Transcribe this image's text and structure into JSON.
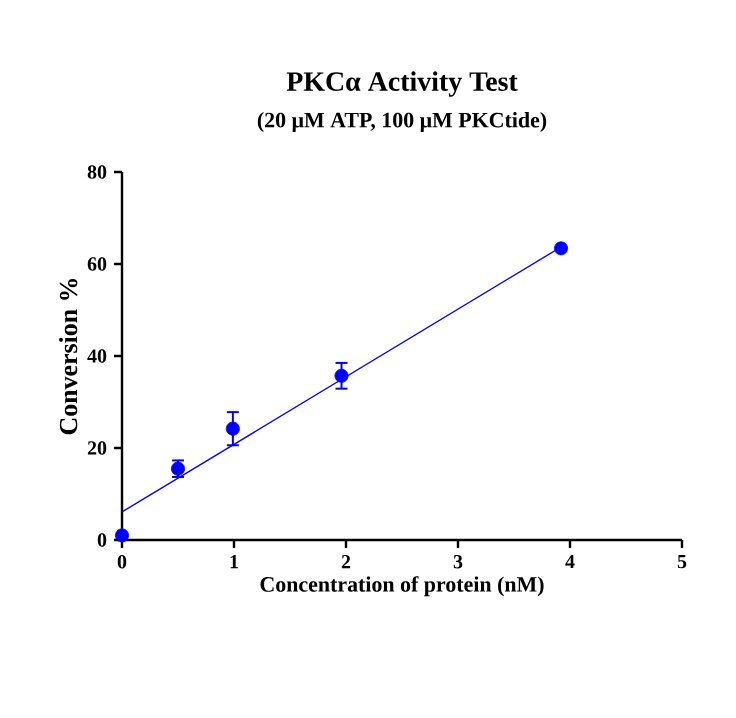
{
  "chart_data": {
    "type": "scatter",
    "title": "PKCα Activity Test",
    "subtitle": "(20 μM ATP, 100 μM PKCtide)",
    "xlabel": "Concentration of protein (nM)",
    "ylabel": "Conversion %",
    "xlim": [
      0,
      5
    ],
    "ylim": [
      0,
      80
    ],
    "xticks": [
      0,
      1,
      2,
      3,
      4,
      5
    ],
    "yticks": [
      0,
      20,
      40,
      60,
      80
    ],
    "grid": false,
    "series": [
      {
        "color": "#0000ff",
        "marker": "circle",
        "x": [
          0,
          0.5,
          0.99,
          1.96,
          3.92
        ],
        "values": [
          1.0,
          15.5,
          24.2,
          35.7,
          63.4
        ],
        "errors": [
          null,
          1.8,
          3.6,
          2.8,
          null
        ]
      },
      {
        "type": "line",
        "color": "#0000ff",
        "x": [
          0,
          3.92
        ],
        "values": [
          6.1,
          63.7
        ],
        "marker": "none"
      }
    ]
  }
}
